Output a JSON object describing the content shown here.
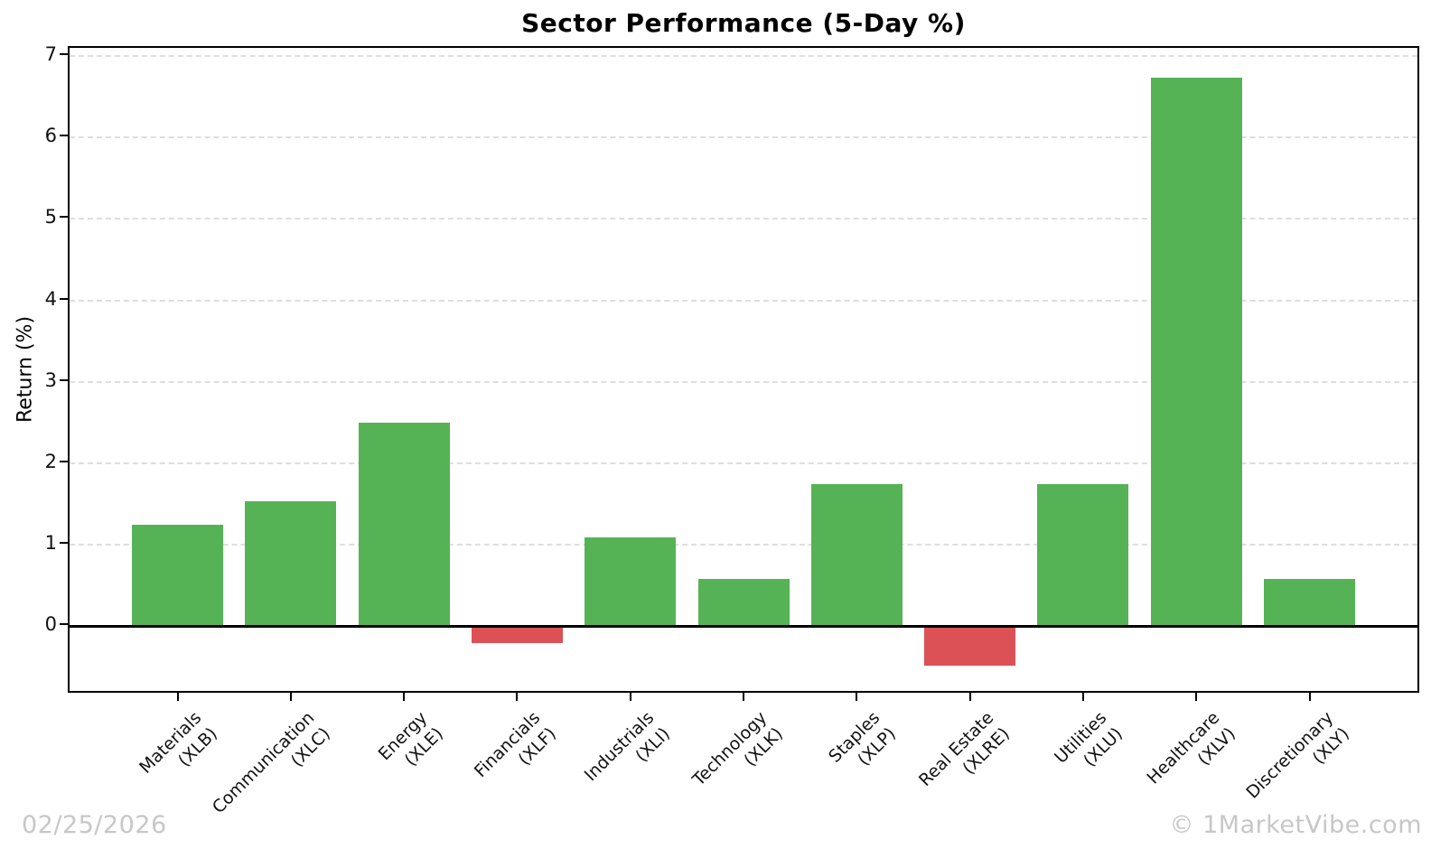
{
  "title": "Sector Performance (5-Day %)",
  "y_axis_title": "Return (%)",
  "watermarks": {
    "date": "02/25/2026",
    "brand": "© 1MarketVibe.com"
  },
  "chart_data": {
    "type": "bar",
    "title": "Sector Performance (5-Day %)",
    "xlabel": "",
    "ylabel": "Return (%)",
    "categories": [
      "Materials\n(XLB)",
      "Communication\n(XLC)",
      "Energy\n(XLE)",
      "Financials\n(XLF)",
      "Industrials\n(XLI)",
      "Technology\n(XLK)",
      "Staples\n(XLP)",
      "Real Estate\n(XLRE)",
      "Utilities\n(XLU)",
      "Healthcare\n(XLV)",
      "Discretionary\n(XLY)"
    ],
    "values": [
      1.24,
      1.53,
      2.5,
      -0.21,
      1.09,
      0.58,
      1.74,
      -0.48,
      1.74,
      6.73,
      0.58
    ],
    "yticks": [
      0,
      1,
      2,
      3,
      4,
      5,
      6,
      7
    ],
    "ylim": [
      -0.84,
      7.1
    ],
    "grid": true,
    "legend": "none",
    "colors": {
      "positive": "#55b355",
      "negative": "#db5156",
      "gridline": "#dedede",
      "axis": "#000000",
      "watermark": "#c7c7c7"
    }
  }
}
